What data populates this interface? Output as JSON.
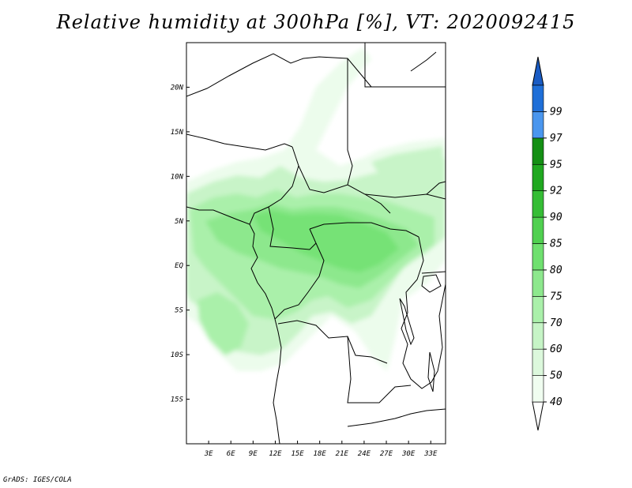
{
  "title": "Relative humidity at 300hPa [%], VT: 2020092415",
  "footer": "GrADS: IGES/COLA",
  "map": {
    "lon_range": [
      0,
      35
    ],
    "lat_range": [
      -20,
      25
    ],
    "lon_ticks": [
      {
        "value": 3,
        "label": "3E"
      },
      {
        "value": 6,
        "label": "6E"
      },
      {
        "value": 9,
        "label": "9E"
      },
      {
        "value": 12,
        "label": "12E"
      },
      {
        "value": 15,
        "label": "15E"
      },
      {
        "value": 18,
        "label": "18E"
      },
      {
        "value": 21,
        "label": "21E"
      },
      {
        "value": 24,
        "label": "24E"
      },
      {
        "value": 27,
        "label": "27E"
      },
      {
        "value": 30,
        "label": "30E"
      },
      {
        "value": 33,
        "label": "33E"
      }
    ],
    "lat_ticks": [
      {
        "value": 20,
        "label": "20N"
      },
      {
        "value": 15,
        "label": "15N"
      },
      {
        "value": 10,
        "label": "10N"
      },
      {
        "value": 5,
        "label": "5N"
      },
      {
        "value": 0,
        "label": "EQ"
      },
      {
        "value": -5,
        "label": "5S"
      },
      {
        "value": -10,
        "label": "10S"
      },
      {
        "value": -15,
        "label": "15S"
      }
    ]
  },
  "colorbar": {
    "levels": [
      {
        "label": "40",
        "color": "#f0fdf0"
      },
      {
        "label": "50",
        "color": "#dcf8dc"
      },
      {
        "label": "60",
        "color": "#c6f4c6"
      },
      {
        "label": "70",
        "color": "#aaf0aa"
      },
      {
        "label": "75",
        "color": "#8de88d"
      },
      {
        "label": "80",
        "color": "#6fe06f"
      },
      {
        "label": "85",
        "color": "#50d050"
      },
      {
        "label": "90",
        "color": "#35bd35"
      },
      {
        "label": "92",
        "color": "#20a820"
      },
      {
        "label": "95",
        "color": "#148f14"
      },
      {
        "label": "97",
        "color": "#4a96ee"
      },
      {
        "label": "99",
        "color": "#1f6fd8"
      }
    ],
    "top_color": "#1a5cc4",
    "bottom_color": "#ffffff"
  }
}
